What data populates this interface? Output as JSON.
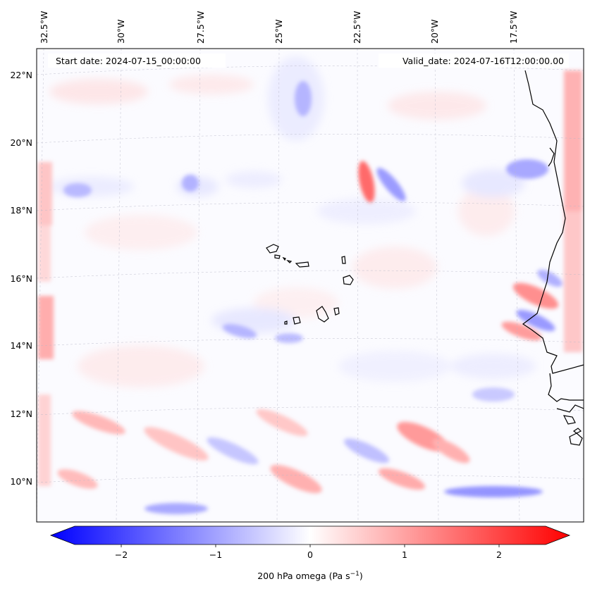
{
  "header": {
    "start_date": "Start date: 2024-07-15_00:00:00",
    "valid_date": "Valid_date: 2024-07-16T12:00:00.00"
  },
  "map": {
    "longitude_labels": [
      "32.5°W",
      "30°W",
      "27.5°W",
      "25°W",
      "22.5°W",
      "20°W",
      "17.5°W"
    ],
    "latitude_labels": [
      "22°N",
      "20°N",
      "18°N",
      "16°N",
      "14°N",
      "12°N",
      "10°N"
    ],
    "field": "200 hPa omega"
  },
  "colorbar": {
    "ticks": [
      "−2",
      "−1",
      "0",
      "1",
      "2"
    ],
    "label": "200 hPa omega (Pa s",
    "label_exp": "−1",
    "label_close": ")",
    "min": -2.6,
    "max": 2.6,
    "cmap": "bwr",
    "low_color": "#0000ff",
    "mid_color": "#ffffff",
    "high_color": "#ff0000"
  },
  "colors": {
    "ascent_blue": "#2a2aff",
    "subsidence_red": "#ff2a2a",
    "coastline": "#000000",
    "gridline": "#b0b0b0"
  }
}
